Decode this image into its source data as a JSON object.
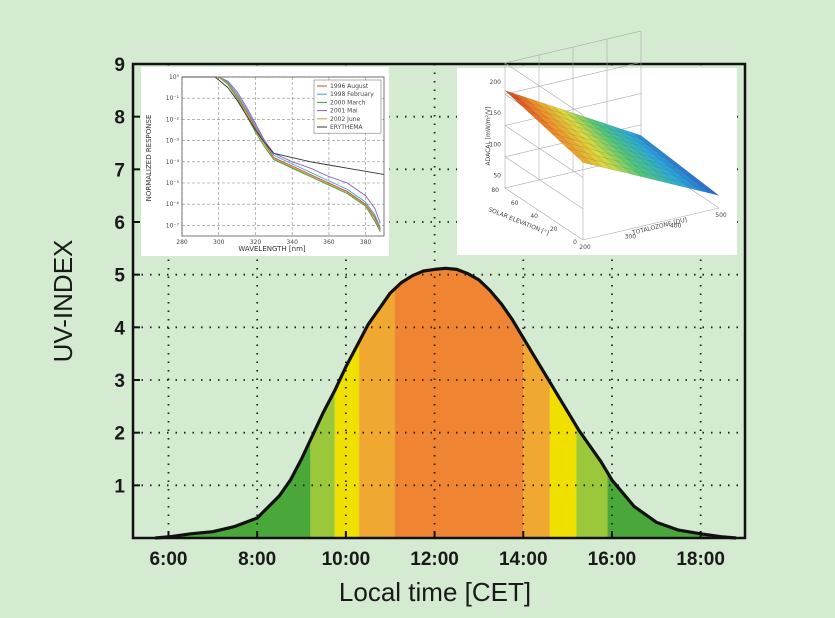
{
  "chart_data": [
    {
      "type": "area",
      "title": "",
      "xlabel": "Local time [CET]",
      "ylabel": "UV-INDEX",
      "x_ticks": [
        "6:00",
        "8:00",
        "10:00",
        "12:00",
        "14:00",
        "16:00",
        "18:00"
      ],
      "y_ticks": [
        "1",
        "2",
        "3",
        "4",
        "5",
        "6",
        "7",
        "8",
        "9"
      ],
      "xlim_hours": [
        5.2,
        19.0
      ],
      "ylim": [
        0,
        9
      ],
      "grid": true,
      "series": [
        {
          "x_hours": [
            5.7,
            6.0,
            6.5,
            7.0,
            7.5,
            8.0,
            8.5,
            8.75,
            9.0,
            9.25,
            9.5,
            9.75,
            10.0,
            10.25,
            10.5,
            10.75,
            11.0,
            11.25,
            11.5,
            11.75,
            12.0,
            12.25,
            12.5,
            12.75,
            13.0,
            13.25,
            13.5,
            13.75,
            14.0,
            14.25,
            14.5,
            14.75,
            15.0,
            15.25,
            15.5,
            15.75,
            16.0,
            16.25,
            16.5,
            17.0,
            17.5,
            18.0,
            18.5,
            18.8
          ],
          "uv_index": [
            0.0,
            0.02,
            0.08,
            0.12,
            0.22,
            0.38,
            0.8,
            1.1,
            1.5,
            1.95,
            2.4,
            2.8,
            3.25,
            3.65,
            4.05,
            4.35,
            4.65,
            4.85,
            4.98,
            5.07,
            5.1,
            5.12,
            5.1,
            5.02,
            4.9,
            4.7,
            4.45,
            4.15,
            3.8,
            3.45,
            3.1,
            2.75,
            2.4,
            2.05,
            1.75,
            1.45,
            1.1,
            0.85,
            0.6,
            0.3,
            0.15,
            0.08,
            0.02,
            0.0
          ]
        }
      ],
      "bands": [
        {
          "from_hours": 5.7,
          "to_hours": 9.2,
          "color": "#4aa83a"
        },
        {
          "from_hours": 9.2,
          "to_hours": 9.75,
          "color": "#9bc73a"
        },
        {
          "from_hours": 9.75,
          "to_hours": 10.3,
          "color": "#f0e000"
        },
        {
          "from_hours": 10.3,
          "to_hours": 11.1,
          "color": "#f0a830"
        },
        {
          "from_hours": 11.1,
          "to_hours": 14.0,
          "color": "#ef8533"
        },
        {
          "from_hours": 14.0,
          "to_hours": 14.6,
          "color": "#f0a830"
        },
        {
          "from_hours": 14.6,
          "to_hours": 15.2,
          "color": "#f0e000"
        },
        {
          "from_hours": 15.2,
          "to_hours": 15.9,
          "color": "#9bc73a"
        },
        {
          "from_hours": 15.9,
          "to_hours": 18.8,
          "color": "#4aa83a"
        }
      ]
    },
    {
      "type": "line",
      "title": "",
      "xlabel": "WAVELENGTH  [nm]",
      "ylabel": "NORMALIZED RESPONSE",
      "x_ticks": [
        "280",
        "300",
        "320",
        "340",
        "360",
        "380"
      ],
      "y_ticks": [
        "10⁰",
        "10⁻¹",
        "10⁻²",
        "10⁻³",
        "10⁻⁴",
        "10⁻⁵",
        "10⁻⁶",
        "10⁻⁷"
      ],
      "xlim": [
        280,
        390
      ],
      "log_y": true,
      "ylim_exp": [
        -7.5,
        0
      ],
      "legend_position": "top-right",
      "series": [
        {
          "name": "1996 August",
          "color": "#d04040",
          "x": [
            280,
            290,
            300,
            305,
            310,
            315,
            320,
            325,
            330,
            340,
            350,
            360,
            370,
            380,
            385,
            388
          ],
          "log10": [
            0,
            0,
            0,
            -0.3,
            -0.9,
            -1.6,
            -2.4,
            -3.1,
            -3.8,
            -4.2,
            -4.6,
            -5.0,
            -5.4,
            -6.0,
            -6.6,
            -7.2
          ]
        },
        {
          "name": "1998 February",
          "color": "#40a0d0",
          "x": [
            280,
            290,
            300,
            305,
            310,
            315,
            320,
            325,
            330,
            340,
            350,
            360,
            370,
            380,
            385,
            388
          ],
          "log10": [
            0,
            0,
            0,
            -0.25,
            -0.8,
            -1.5,
            -2.3,
            -3.0,
            -3.7,
            -4.1,
            -4.5,
            -4.9,
            -5.3,
            -5.9,
            -6.5,
            -7.1
          ]
        },
        {
          "name": "2000 March",
          "color": "#30a040",
          "x": [
            280,
            290,
            300,
            305,
            310,
            315,
            320,
            325,
            330,
            340,
            350,
            360,
            370,
            380,
            385,
            388
          ],
          "log10": [
            0,
            0,
            0,
            -0.35,
            -1.0,
            -1.8,
            -2.6,
            -3.3,
            -3.9,
            -4.3,
            -4.7,
            -5.1,
            -5.5,
            -6.1,
            -6.8,
            -7.3
          ]
        },
        {
          "name": "2001 Mai",
          "color": "#8060c0",
          "x": [
            280,
            290,
            300,
            305,
            310,
            315,
            320,
            325,
            330,
            340,
            350,
            360,
            370,
            380,
            385,
            388
          ],
          "log10": [
            0,
            0,
            0,
            -0.2,
            -0.7,
            -1.4,
            -2.2,
            -3.0,
            -3.6,
            -4.0,
            -4.3,
            -4.7,
            -5.0,
            -5.6,
            -6.2,
            -6.9
          ]
        },
        {
          "name": "2002 June",
          "color": "#c0a030",
          "x": [
            280,
            290,
            300,
            305,
            310,
            315,
            320,
            325,
            330,
            340,
            350,
            360,
            370,
            380,
            385,
            388
          ],
          "log10": [
            0,
            0,
            0,
            -0.3,
            -0.95,
            -1.7,
            -2.5,
            -3.2,
            -3.85,
            -4.25,
            -4.65,
            -5.05,
            -5.45,
            -6.05,
            -6.7,
            -7.25
          ]
        },
        {
          "name": "ERYTHEMA",
          "color": "#333333",
          "x": [
            280,
            290,
            298,
            305,
            310,
            315,
            320,
            325,
            330,
            340,
            350,
            360,
            370,
            380,
            390
          ],
          "log10": [
            0,
            0,
            0,
            -0.5,
            -1.1,
            -1.8,
            -2.5,
            -3.1,
            -3.6,
            -3.8,
            -4.0,
            -4.15,
            -4.3,
            -4.45,
            -4.6
          ]
        }
      ]
    },
    {
      "type": "surface",
      "title": "",
      "xlabel": "TOTALOZONE [DU]",
      "ylabel": "SOLAR ELEVATION [°]",
      "zlabel": "ADACAL [mW/m²/V]",
      "x_ticks": [
        "200",
        "300",
        "400",
        "500"
      ],
      "y_ticks": [
        "0",
        "20",
        "40",
        "60",
        "80"
      ],
      "z_ticks": [
        "50",
        "100",
        "150",
        "200"
      ]
    }
  ]
}
